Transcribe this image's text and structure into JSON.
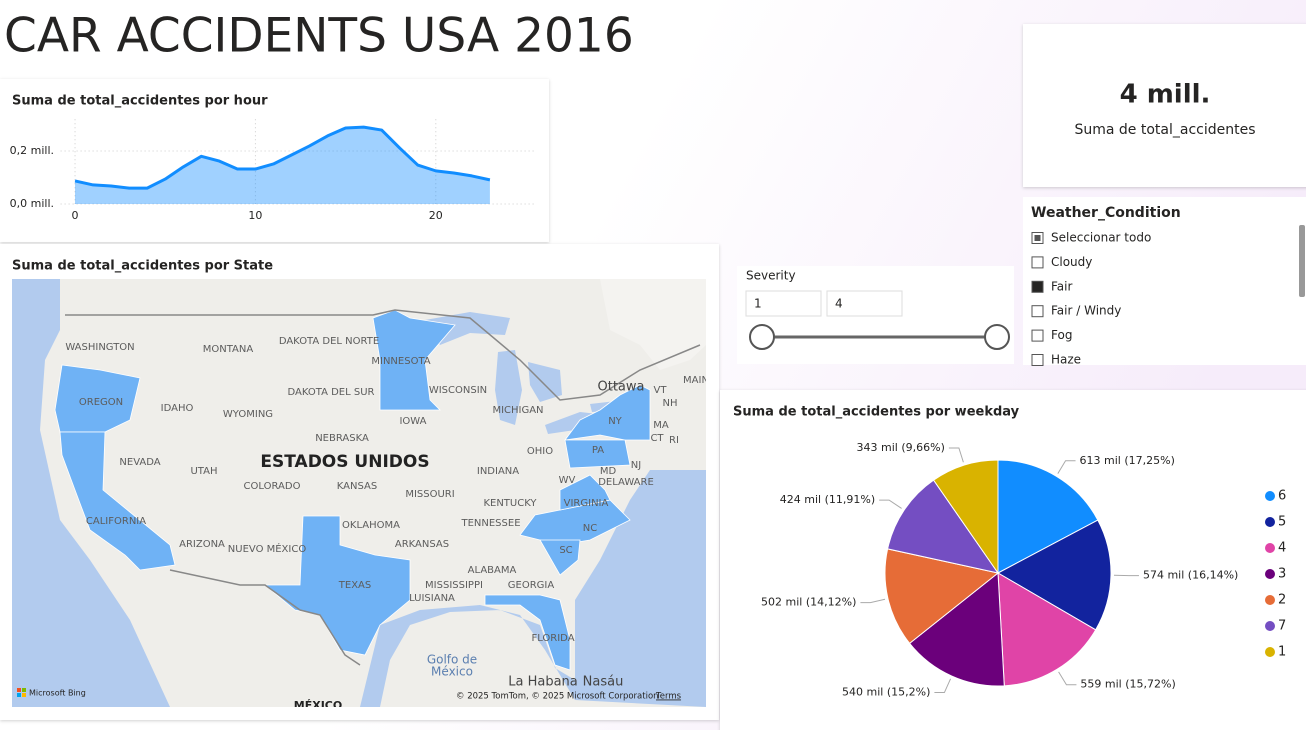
{
  "title": "CAR ACCIDENTS USA 2016",
  "chart_data": [
    {
      "type": "line",
      "title": "Suma de total_accidentes por hour",
      "x": [
        0,
        1,
        2,
        3,
        4,
        5,
        6,
        7,
        8,
        9,
        10,
        11,
        12,
        13,
        14,
        15,
        16,
        17,
        18,
        19,
        20,
        21,
        22,
        23
      ],
      "values": [
        0.087,
        0.072,
        0.068,
        0.06,
        0.06,
        0.094,
        0.14,
        0.18,
        0.162,
        0.132,
        0.132,
        0.151,
        0.185,
        0.219,
        0.257,
        0.287,
        0.29,
        0.279,
        0.211,
        0.147,
        0.125,
        0.117,
        0.106,
        0.091
      ],
      "color": "#118DFF",
      "xlim": [
        -0.8,
        25.5
      ],
      "ylim": [
        0,
        0.32
      ],
      "xticks": [
        0,
        10,
        20
      ],
      "yticks": [
        {
          "value": 0,
          "label": "0,0 mill."
        },
        {
          "value": 0.2,
          "label": "0,2 mill."
        }
      ],
      "grid": true
    },
    {
      "type": "pie",
      "title": "Suma de total_accidentes por weekday",
      "categories": [
        "6",
        "5",
        "4",
        "3",
        "2",
        "7",
        "1"
      ],
      "values": [
        613,
        574,
        559,
        540,
        502,
        424,
        343
      ],
      "value_labels": [
        "613 mil (17,25%)",
        "574 mil (16,14%)",
        "559 mil (15,72%)",
        "540 mil (15,2%)",
        "502 mil (14,12%)",
        "424 mil (11,91%)",
        "343 mil (9,66%)"
      ],
      "colors": [
        "#118DFF",
        "#12239E",
        "#E044A7",
        "#6B007B",
        "#E66C37",
        "#744EC2",
        "#D9B300"
      ],
      "legend": "right"
    }
  ],
  "map": {
    "title": "Suma de total_accidentes por State",
    "labels": [
      "WASHINGTON",
      "MONTANA",
      "DAKOTA DEL NORTE",
      "MINNESOTA",
      "WISCONSIN",
      "MICHIGAN",
      "OREGON",
      "IDAHO",
      "WYOMING",
      "DAKOTA DEL SUR",
      "IOWA",
      "NEBRASKA",
      "ESTADOS UNIDOS",
      "NEVADA",
      "UTAH",
      "COLORADO",
      "KANSAS",
      "MISSOURI",
      "INDIANA",
      "OHIO",
      "KENTUCKY",
      "WV",
      "VIRGINIA",
      "TENNESSEE",
      "NC",
      "SC",
      "CALIFORNIA",
      "ARIZONA",
      "NUEVO MÉXICO",
      "OKLAHOMA",
      "ARKANSAS",
      "ALABAMA",
      "GEORGIA",
      "MISSISSIPPI",
      "LUISIANA",
      "TEXAS",
      "FLORIDA",
      "NY",
      "PA",
      "NJ",
      "MD",
      "DELAWARE",
      "VT",
      "NH",
      "MA",
      "CT",
      "RI",
      "MAIN",
      "Ottawa",
      "Golfo de",
      "México",
      "La Habana",
      "Nasáu",
      "MÉXICO"
    ],
    "attribution": "© 2025 TomTom, © 2025 Microsoft Corporation",
    "terms": "Terms",
    "provider": "Microsoft Bing"
  },
  "card": {
    "value": "4 mill.",
    "label": "Suma de total_accidentes"
  },
  "severity_slicer": {
    "title": "Severity",
    "min": 1,
    "max": 4
  },
  "weather_slicer": {
    "title": "Weather_Condition",
    "items": [
      {
        "label": "Seleccionar todo",
        "state": "partial"
      },
      {
        "label": "Cloudy",
        "state": "unchecked"
      },
      {
        "label": "Fair",
        "state": "checked"
      },
      {
        "label": "Fair / Windy",
        "state": "unchecked"
      },
      {
        "label": "Fog",
        "state": "unchecked"
      },
      {
        "label": "Haze",
        "state": "unchecked"
      }
    ]
  }
}
